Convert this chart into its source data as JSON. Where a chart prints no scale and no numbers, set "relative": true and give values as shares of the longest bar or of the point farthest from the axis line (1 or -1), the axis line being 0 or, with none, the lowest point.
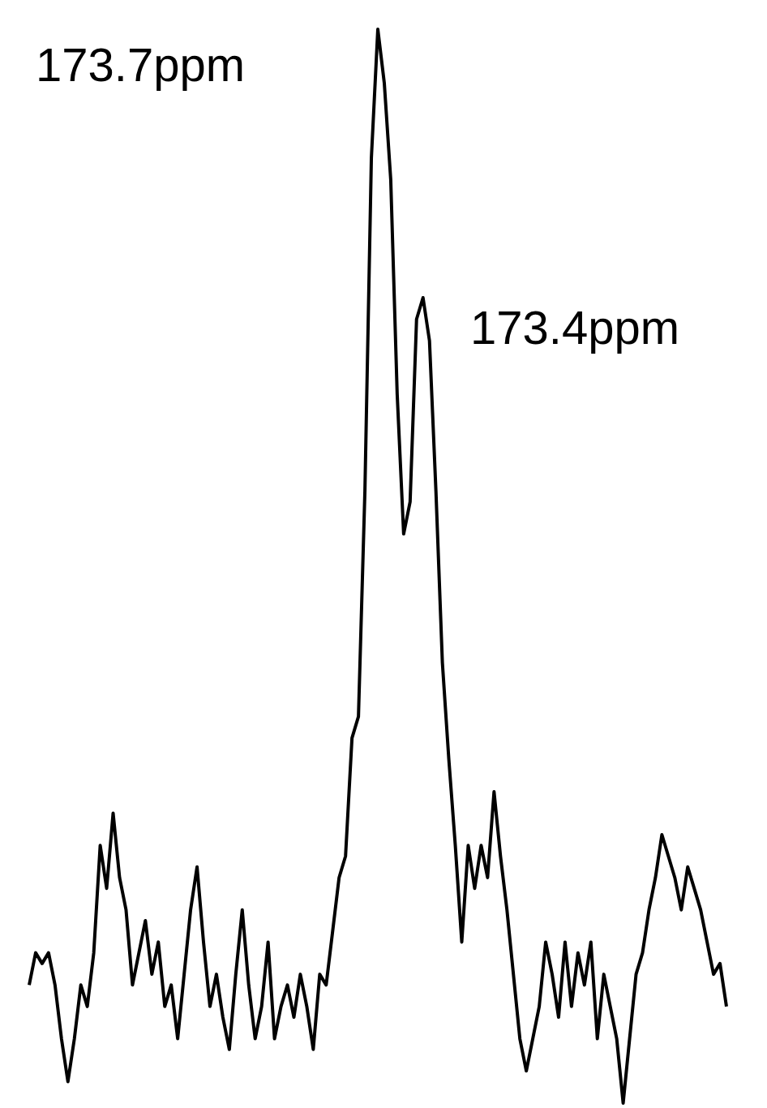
{
  "chart_data": {
    "type": "line",
    "relative": true,
    "color": "#000000",
    "marker": "none",
    "line_style": "solid",
    "grid": false,
    "legend": false,
    "tick_labels": false,
    "annotations": [
      "173.7ppm",
      "173.4ppm"
    ],
    "categories": [
      null,
      null,
      null,
      null,
      null,
      null,
      null,
      null,
      null,
      null,
      null,
      null,
      null,
      null,
      null,
      null,
      null,
      null,
      null,
      null,
      null,
      null,
      null,
      null,
      null,
      null,
      null,
      null,
      null,
      null,
      null,
      null,
      null,
      null,
      null,
      null,
      null,
      null,
      null,
      null,
      null,
      null,
      null,
      null,
      null,
      null,
      null,
      null,
      null,
      null,
      null,
      null,
      null,
      null,
      null,
      null,
      null,
      null,
      null,
      null,
      null,
      null,
      null,
      null,
      null,
      null,
      null,
      null,
      null,
      null,
      null,
      null,
      null,
      null,
      null,
      null,
      null,
      null,
      null,
      null,
      null,
      null,
      null,
      null,
      null,
      null,
      null,
      null,
      null,
      null,
      null,
      null,
      null,
      null,
      null,
      null,
      null,
      null,
      null,
      null,
      null,
      null,
      null,
      null,
      null,
      null,
      null,
      null,
      null
    ],
    "values": [
      0.11,
      0.14,
      0.13,
      0.14,
      0.11,
      0.06,
      0.02,
      0.06,
      0.11,
      0.09,
      0.14,
      0.24,
      0.2,
      0.27,
      0.21,
      0.18,
      0.11,
      0.14,
      0.17,
      0.12,
      0.15,
      0.09,
      0.11,
      0.06,
      0.12,
      0.18,
      0.22,
      0.15,
      0.09,
      0.12,
      0.08,
      0.05,
      0.12,
      0.18,
      0.11,
      0.06,
      0.09,
      0.15,
      0.06,
      0.09,
      0.11,
      0.08,
      0.12,
      0.09,
      0.05,
      0.12,
      0.11,
      0.16,
      0.21,
      0.23,
      0.34,
      0.36,
      0.57,
      0.88,
      1,
      0.95,
      0.86,
      0.66,
      0.53,
      0.56,
      0.73,
      0.75,
      0.71,
      0.57,
      0.41,
      0.32,
      0.24,
      0.15,
      0.24,
      0.2,
      0.24,
      0.21,
      0.29,
      0.23,
      0.18,
      0.12,
      0.06,
      0.03,
      0.06,
      0.09,
      0.15,
      0.12,
      0.08,
      0.15,
      0.09,
      0.14,
      0.11,
      0.15,
      0.06,
      0.12,
      0.09,
      0.06,
      0,
      0.06,
      0.12,
      0.14,
      0.18,
      0.21,
      0.25,
      0.23,
      0.21,
      0.18,
      0.22,
      0.2,
      0.18,
      0.15,
      0.12,
      0.13,
      0.09
    ]
  }
}
